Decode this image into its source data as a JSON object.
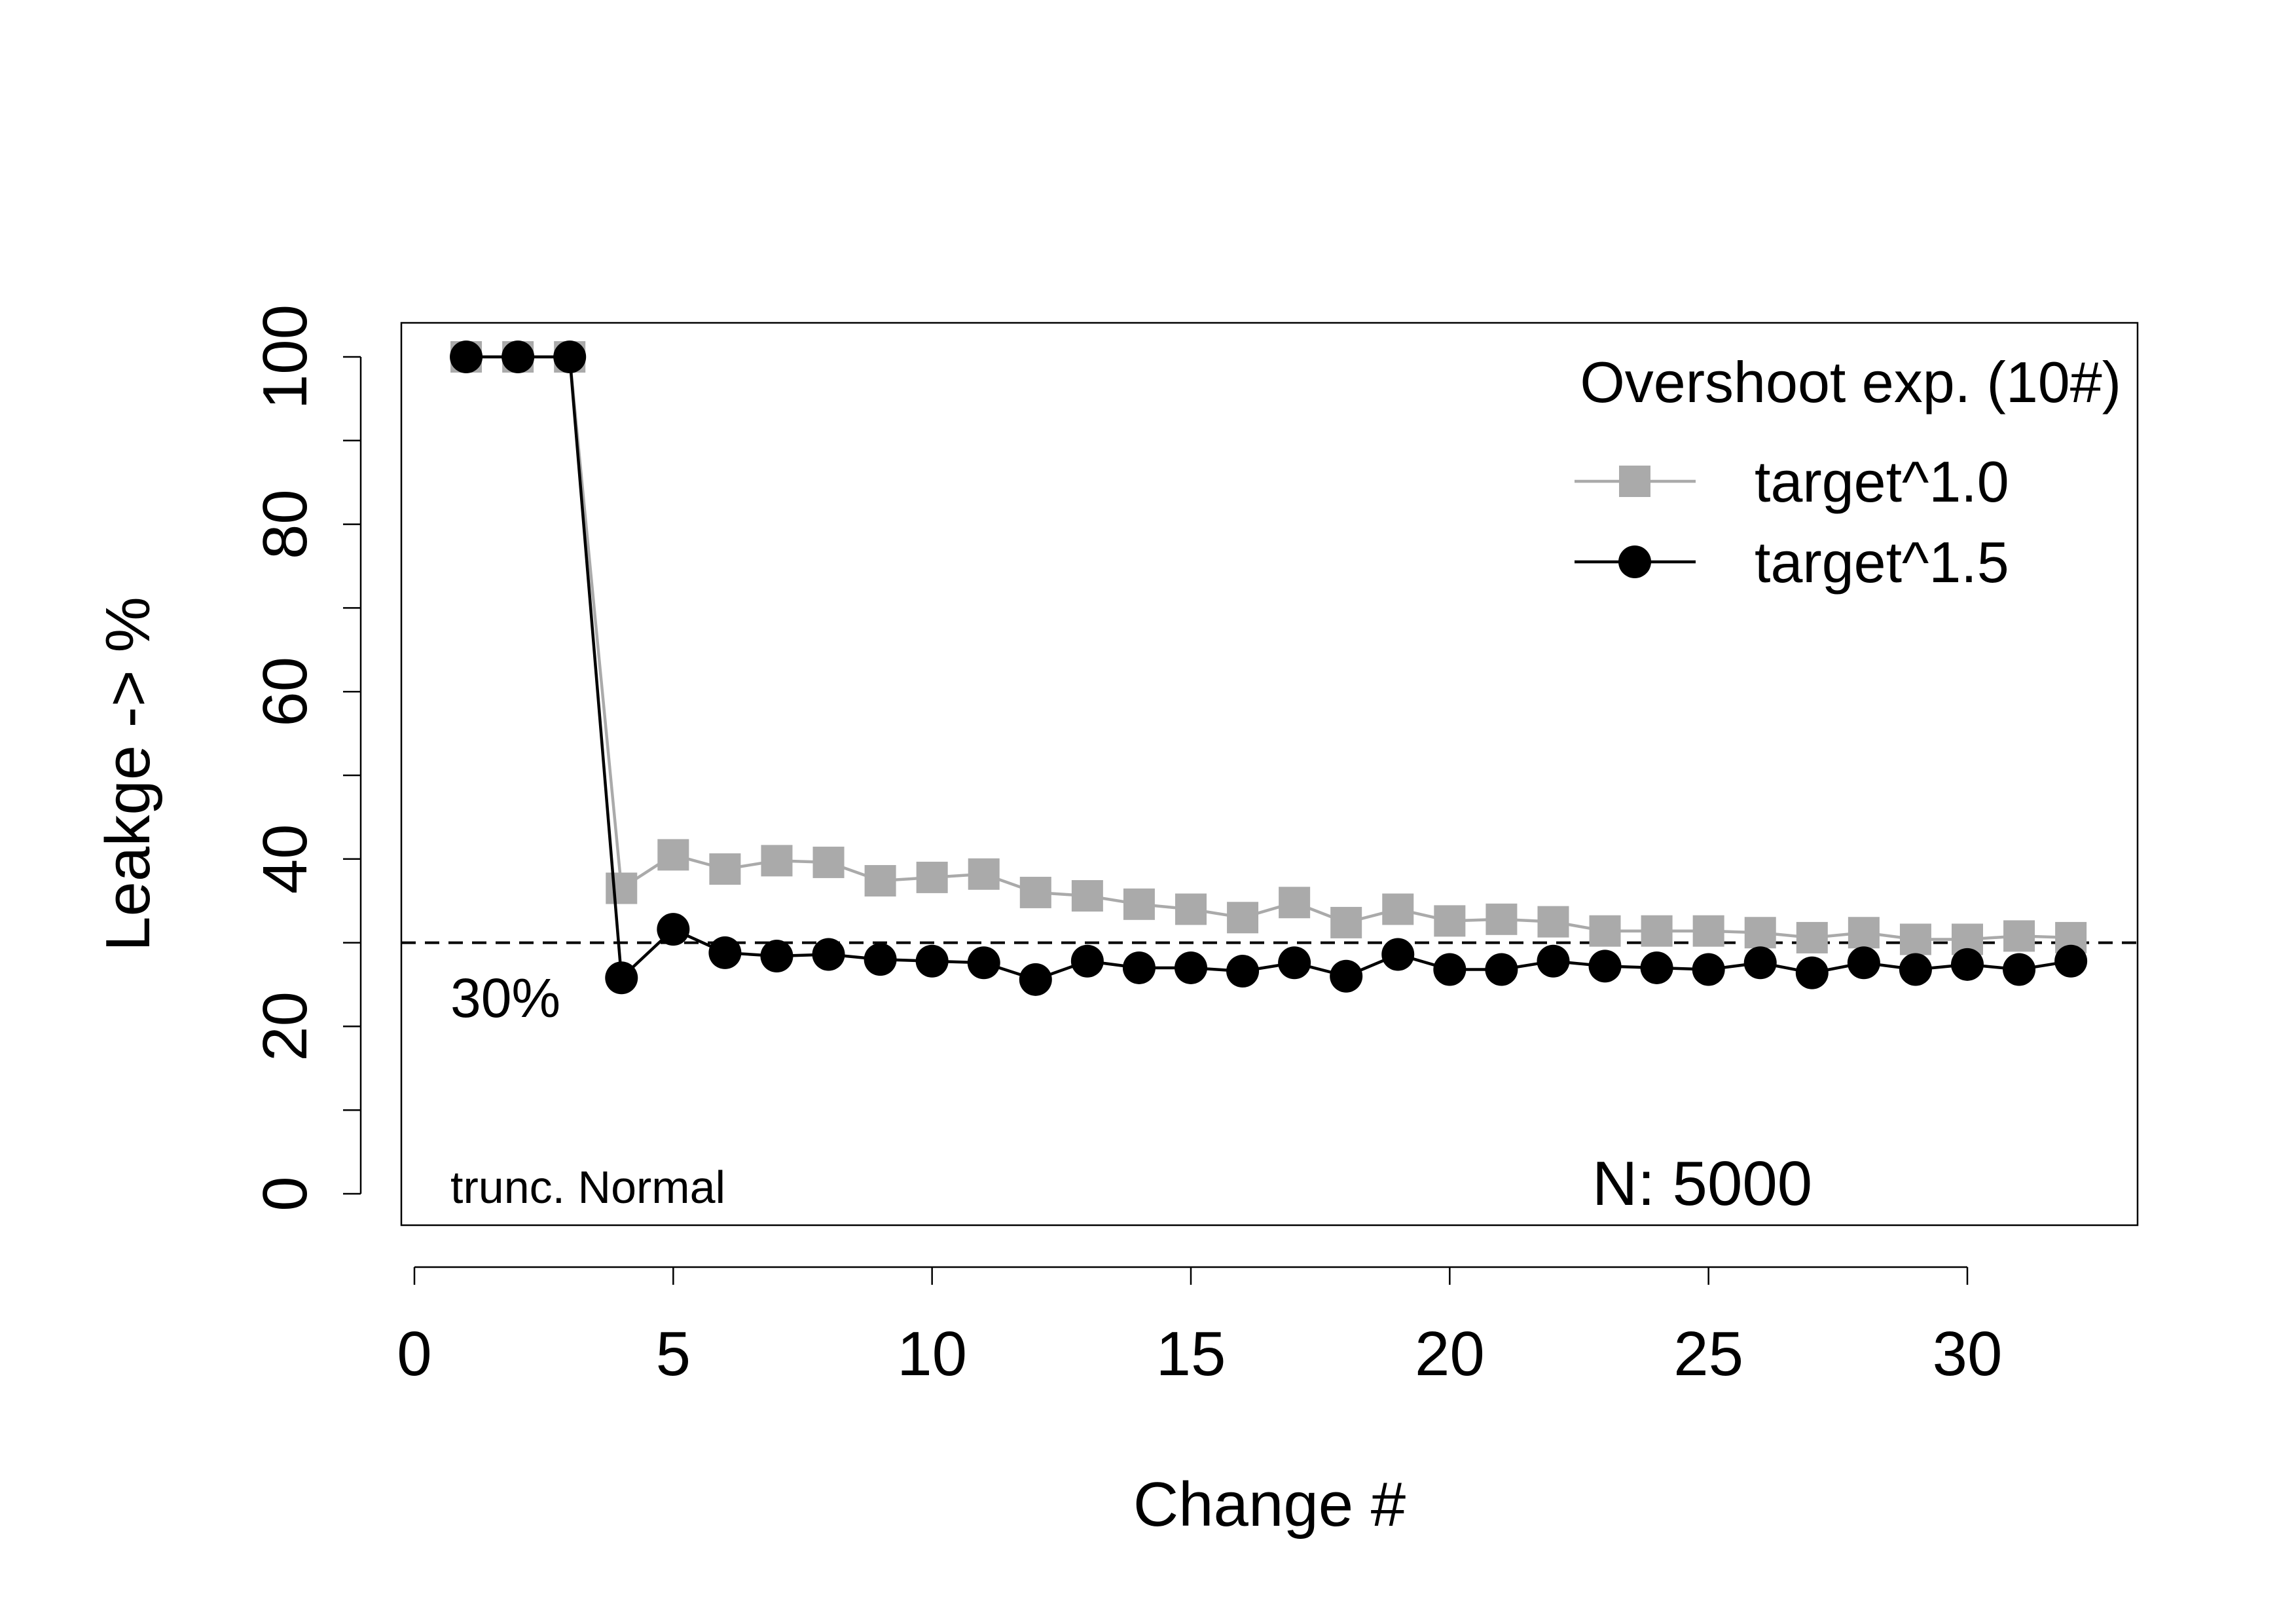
{
  "chart_data": {
    "type": "line",
    "xlabel": "Change #",
    "ylabel": "Leakge -> %",
    "xlim": [
      0,
      33
    ],
    "ylim": [
      0,
      100
    ],
    "x_ticks": [
      0,
      5,
      10,
      15,
      20,
      25,
      30
    ],
    "y_ticks": [
      0,
      20,
      40,
      60,
      80,
      100
    ],
    "y_minor_ticks": [
      10,
      30,
      50,
      70,
      90
    ],
    "grid": false,
    "legend": {
      "title": "Overshoot exp. (10#)",
      "position": "top-right"
    },
    "x": [
      1,
      2,
      3,
      4,
      5,
      6,
      7,
      8,
      9,
      10,
      11,
      12,
      13,
      14,
      15,
      16,
      17,
      18,
      19,
      20,
      21,
      22,
      23,
      24,
      25,
      26,
      27,
      28,
      29,
      30,
      31,
      32
    ],
    "series": [
      {
        "name": "target^1.0",
        "color": "#aaaaaa",
        "marker": "square",
        "values": [
          100,
          100,
          100,
          36.5,
          40.5,
          38.8,
          39.8,
          39.6,
          37.4,
          37.8,
          38.2,
          36.0,
          35.6,
          34.6,
          34.0,
          33.0,
          34.8,
          32.4,
          34.0,
          32.6,
          32.8,
          32.5,
          31.4,
          31.4,
          31.4,
          31.2,
          30.6,
          31.2,
          30.4,
          30.4,
          30.8,
          30.6
        ]
      },
      {
        "name": "target^1.5",
        "color": "#000000",
        "marker": "circle",
        "values": [
          100,
          100,
          100,
          25.8,
          31.6,
          28.8,
          28.4,
          28.6,
          28.0,
          27.8,
          27.6,
          25.6,
          27.8,
          27.0,
          27.0,
          26.6,
          27.6,
          26.0,
          28.6,
          26.8,
          26.8,
          27.8,
          27.2,
          27.0,
          26.8,
          27.6,
          26.4,
          27.6,
          26.8,
          27.4,
          26.8,
          27.8
        ]
      }
    ],
    "reference_line": {
      "y": 30,
      "label": "30%",
      "style": "dashed"
    },
    "annotations": {
      "distribution": "trunc. Normal",
      "sample_size": "N: 5000"
    }
  }
}
